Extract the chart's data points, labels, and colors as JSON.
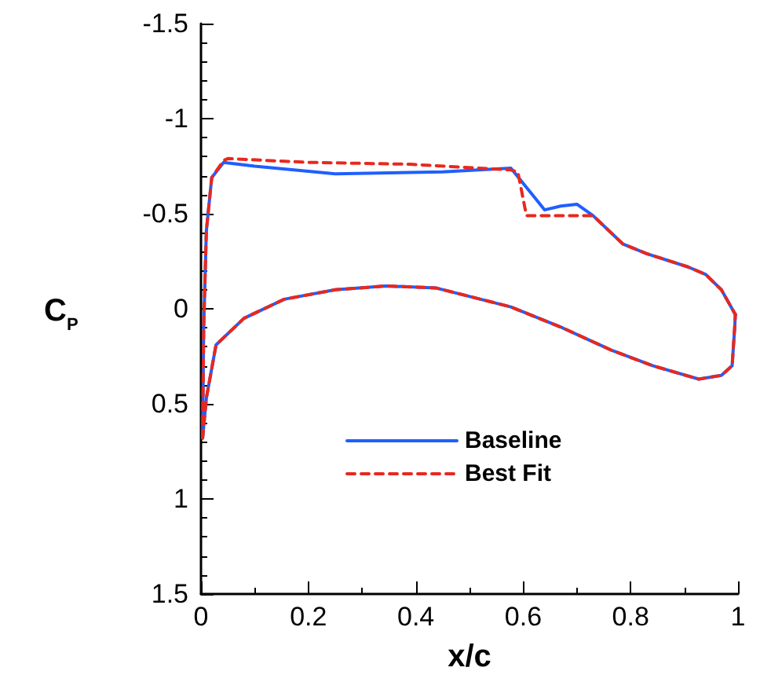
{
  "chart_data": {
    "type": "line",
    "xlabel": "x/c",
    "ylabel": "C$_{P}$",
    "xlim": [
      0,
      1
    ],
    "xticks": [
      0,
      0.2,
      0.4,
      0.6,
      0.8,
      1
    ],
    "ylim": [
      1.5,
      -1.5
    ],
    "yticks": [
      -1.5,
      -1,
      -0.5,
      0,
      0.5,
      1,
      1.5
    ],
    "grid": false,
    "legend": "bottom",
    "marker": "none",
    "series": [
      {
        "name": "Baseline",
        "color": "#1f5fff",
        "line_style": "solid",
        "x": [
          0.003,
          0.005,
          0.01,
          0.02,
          0.042,
          0.1,
          0.25,
          0.45,
          0.577,
          0.64,
          0.67,
          0.7,
          0.73,
          0.786,
          0.83,
          0.907,
          0.94,
          0.969,
          0.995
        ],
        "values": [
          0.68,
          0.1,
          -0.41,
          -0.69,
          -0.77,
          -0.75,
          -0.71,
          -0.72,
          -0.74,
          -0.52,
          -0.54,
          -0.55,
          -0.49,
          -0.34,
          -0.29,
          -0.22,
          -0.18,
          -0.1,
          0.03
        ]
      },
      {
        "color": "#1f5fff",
        "line_style": "solid",
        "x": [
          0.003,
          0.01,
          0.028,
          0.08,
          0.155,
          0.25,
          0.344,
          0.437,
          0.577,
          0.673,
          0.766,
          0.842,
          0.927,
          0.969,
          0.989,
          0.994,
          0.995
        ],
        "values": [
          0.68,
          0.47,
          0.19,
          0.05,
          -0.05,
          -0.1,
          -0.12,
          -0.11,
          -0.01,
          0.1,
          0.22,
          0.3,
          0.37,
          0.35,
          0.3,
          0.09,
          0.03
        ]
      },
      {
        "name": "Best Fit",
        "color": "#e8281e",
        "line_style": "dashed",
        "x": [
          0.003,
          0.005,
          0.01,
          0.02,
          0.042,
          0.05,
          0.2,
          0.39,
          0.577,
          0.59,
          0.606,
          0.73,
          0.786,
          0.83,
          0.907,
          0.94,
          0.969,
          0.995
        ],
        "values": [
          0.68,
          0.1,
          -0.41,
          -0.69,
          -0.78,
          -0.79,
          -0.77,
          -0.76,
          -0.73,
          -0.72,
          -0.49,
          -0.49,
          -0.34,
          -0.29,
          -0.22,
          -0.18,
          -0.1,
          0.03
        ]
      },
      {
        "color": "#e8281e",
        "line_style": "dashed",
        "x": [
          0.003,
          0.01,
          0.028,
          0.08,
          0.155,
          0.25,
          0.344,
          0.437,
          0.577,
          0.673,
          0.766,
          0.842,
          0.927,
          0.969,
          0.989,
          0.994,
          0.995
        ],
        "values": [
          0.68,
          0.47,
          0.19,
          0.05,
          -0.05,
          -0.1,
          -0.12,
          -0.11,
          -0.01,
          0.1,
          0.22,
          0.3,
          0.37,
          0.35,
          0.3,
          0.09,
          0.03
        ]
      }
    ]
  }
}
